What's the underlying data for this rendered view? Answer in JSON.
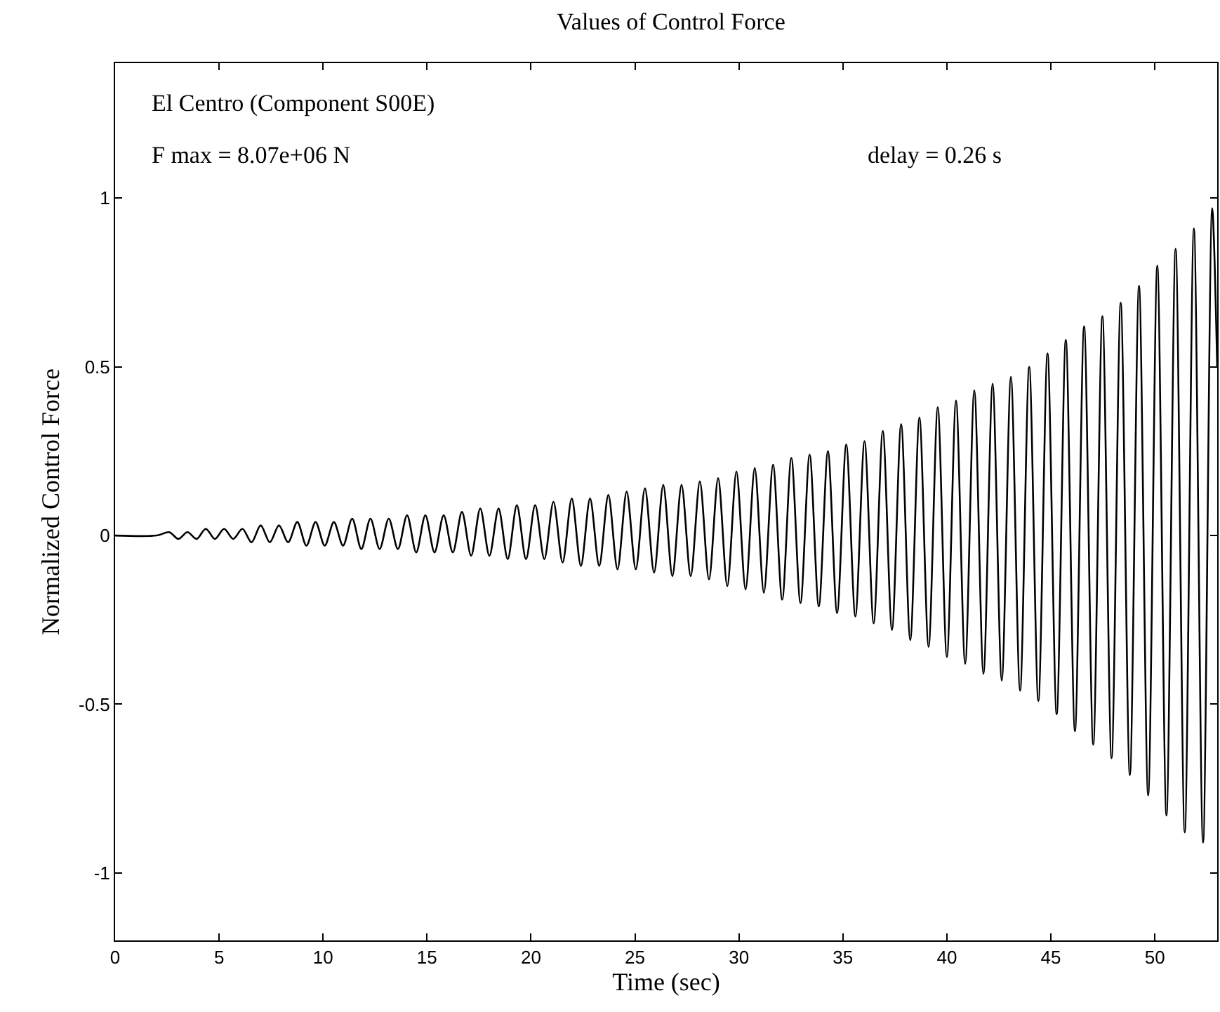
{
  "chart_data": {
    "type": "line",
    "title": "Values of Control Force",
    "xlabel": "Time (sec)",
    "ylabel": "Normalized Control Force",
    "annotations": [
      "El Centro (Component S00E)",
      "F max = 8.07e+06 N",
      "delay = 0.26 s"
    ],
    "x": [
      0,
      2.0,
      2.6,
      3.04,
      3.48,
      3.92,
      4.36,
      4.8,
      5.24,
      5.68,
      6.12,
      6.56,
      7.0,
      7.44,
      7.88,
      8.32,
      8.76,
      9.2,
      9.64,
      10.08,
      10.52,
      10.96,
      11.4,
      11.84,
      12.28,
      12.72,
      13.16,
      13.6,
      14.04,
      14.48,
      14.92,
      15.36,
      15.8,
      16.24,
      16.68,
      17.12,
      17.56,
      18.0,
      18.44,
      18.88,
      19.32,
      19.76,
      20.2,
      20.64,
      21.08,
      21.52,
      21.96,
      22.4,
      22.84,
      23.28,
      23.72,
      24.16,
      24.6,
      25.04,
      25.48,
      25.92,
      26.36,
      26.8,
      27.24,
      27.68,
      28.12,
      28.56,
      29.0,
      29.44,
      29.88,
      30.32,
      30.76,
      31.2,
      31.64,
      32.08,
      32.52,
      32.96,
      33.4,
      33.84,
      34.28,
      34.72,
      35.16,
      35.6,
      36.04,
      36.48,
      36.92,
      37.36,
      37.8,
      38.24,
      38.68,
      39.12,
      39.56,
      40.0,
      40.44,
      40.88,
      41.32,
      41.76,
      42.2,
      42.64,
      43.08,
      43.52,
      43.96,
      44.4,
      44.84,
      45.28,
      45.72,
      46.16,
      46.6,
      47.04,
      47.48,
      47.92,
      48.36,
      48.8,
      49.24,
      49.68,
      50.12,
      50.56,
      51.0,
      51.44,
      51.88,
      52.32,
      52.76,
      53.0
    ],
    "series": [
      {
        "color": "#000000",
        "values": [
          0,
          0,
          0.01,
          -0.01,
          0.01,
          -0.01,
          0.02,
          -0.01,
          0.02,
          -0.01,
          0.02,
          -0.02,
          0.03,
          -0.02,
          0.03,
          -0.02,
          0.04,
          -0.03,
          0.04,
          -0.03,
          0.04,
          -0.03,
          0.05,
          -0.04,
          0.05,
          -0.04,
          0.05,
          -0.04,
          0.06,
          -0.05,
          0.06,
          -0.05,
          0.06,
          -0.05,
          0.07,
          -0.06,
          0.08,
          -0.06,
          0.08,
          -0.07,
          0.09,
          -0.07,
          0.09,
          -0.07,
          0.1,
          -0.08,
          0.11,
          -0.09,
          0.11,
          -0.09,
          0.12,
          -0.1,
          0.13,
          -0.1,
          0.14,
          -0.11,
          0.15,
          -0.12,
          0.15,
          -0.12,
          0.16,
          -0.13,
          0.17,
          -0.15,
          0.19,
          -0.16,
          0.2,
          -0.17,
          0.21,
          -0.19,
          0.23,
          -0.2,
          0.24,
          -0.21,
          0.25,
          -0.23,
          0.27,
          -0.24,
          0.28,
          -0.26,
          0.31,
          -0.28,
          0.33,
          -0.31,
          0.35,
          -0.33,
          0.38,
          -0.36,
          0.4,
          -0.38,
          0.43,
          -0.41,
          0.45,
          -0.43,
          0.47,
          -0.46,
          0.5,
          -0.49,
          0.54,
          -0.53,
          0.58,
          -0.58,
          0.62,
          -0.62,
          0.65,
          -0.66,
          0.69,
          -0.71,
          0.74,
          -0.77,
          0.8,
          -0.83,
          0.85,
          -0.88,
          0.91,
          -0.91,
          0.97,
          0.5
        ]
      }
    ],
    "xlim": [
      0,
      53
    ],
    "xticks": [
      0,
      5,
      10,
      15,
      20,
      25,
      30,
      35,
      40,
      45,
      50
    ],
    "ylim": [
      -1.2,
      1.4
    ],
    "yticks": [
      -1,
      -0.5,
      0,
      0.5,
      1
    ],
    "grid": false,
    "marker": "none",
    "line_style": "solid"
  }
}
